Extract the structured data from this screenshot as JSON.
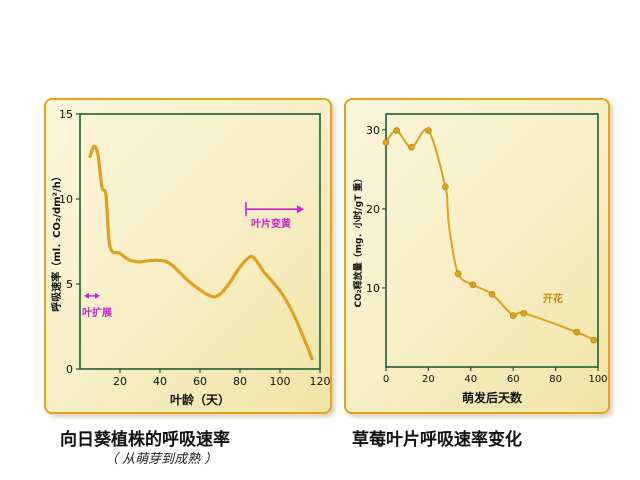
{
  "captions": {
    "left": "向日葵植株的呼吸速率",
    "left_sub": "（ 从萌芽到成熟 ）",
    "right": "草莓叶片呼吸速率变化"
  },
  "colors": {
    "curve": "#e0a11d",
    "axis": "#1f5c32",
    "annot_left": "#cc22cc",
    "annot_right": "#c88a10",
    "frame": "#e6a21a"
  },
  "chart_data": [
    {
      "type": "line",
      "xlabel": "叶龄（天）",
      "ylabel": "呼吸速率（ml．CO₂/dm²/h）",
      "xlim": [
        0,
        120
      ],
      "ylim": [
        0,
        15
      ],
      "xticks": [
        20,
        40,
        60,
        80,
        100,
        120
      ],
      "yticks": [
        0,
        5,
        10,
        15
      ],
      "x": [
        5,
        7,
        9,
        11,
        13,
        15,
        20,
        25,
        30,
        38,
        45,
        55,
        65,
        70,
        75,
        80,
        85,
        88,
        92,
        100,
        106,
        112,
        116
      ],
      "y": [
        12.5,
        13.1,
        12.6,
        10.7,
        10.2,
        7.2,
        6.8,
        6.4,
        6.3,
        6.4,
        6.2,
        5.1,
        4.3,
        4.4,
        5.1,
        6.0,
        6.6,
        6.4,
        5.7,
        4.6,
        3.4,
        1.8,
        0.6
      ],
      "annotations": [
        {
          "text": "叶片变黄",
          "x_start": 83,
          "x_end": 112,
          "y": 9.4
        },
        {
          "text": "叶扩展",
          "x_start": 2,
          "x_end": 10,
          "y": 4.3
        }
      ]
    },
    {
      "type": "line",
      "xlabel": "萌发后天数",
      "ylabel": "CO₂释放量（mg．小时/gT 重）",
      "xlim": [
        0,
        100
      ],
      "ylim": [
        0,
        32
      ],
      "xticks": [
        0,
        20,
        40,
        60,
        80,
        100
      ],
      "yticks": [
        10,
        20,
        30
      ],
      "x": [
        0,
        5,
        12,
        20,
        28,
        29,
        30,
        34,
        41,
        50,
        60,
        65,
        90,
        98
      ],
      "y": [
        28.4,
        29.9,
        27.8,
        29.9,
        22.8,
        20.3,
        17.3,
        11.8,
        10.4,
        9.2,
        6.5,
        6.8,
        4.4,
        3.4
      ],
      "markers": [
        [
          0,
          28.4
        ],
        [
          5,
          29.9
        ],
        [
          12,
          27.8
        ],
        [
          20,
          29.9
        ],
        [
          28,
          22.8
        ],
        [
          34,
          11.8
        ],
        [
          41,
          10.4
        ],
        [
          50,
          9.2
        ],
        [
          60,
          6.5
        ],
        [
          65,
          6.8
        ],
        [
          90,
          4.4
        ],
        [
          98,
          3.4
        ]
      ],
      "annotations": [
        {
          "text": "开花",
          "x": 74,
          "y": 8.2
        }
      ]
    }
  ]
}
